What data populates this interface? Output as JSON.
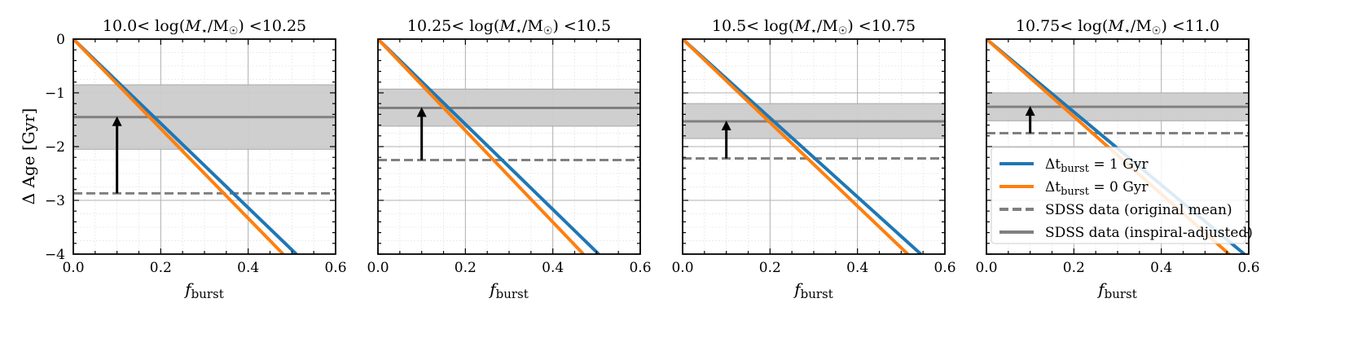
{
  "figure": {
    "ylabel": "Δ Age [Gyr]",
    "xlabel": "f_burst",
    "xlabel_main": "f",
    "xlabel_sub": "burst"
  },
  "colors": {
    "blue": "#1f77b4",
    "orange": "#ff7f0e",
    "sdss_line": "#808080",
    "band": "#cccccc",
    "grid_major": "#b0b0b0",
    "grid_minor": "#e6e6e6",
    "arrow": "#000000"
  },
  "legend": {
    "entries": [
      {
        "label": "Δt_burst = 1 Gyr",
        "pre": "Δt",
        "sub": "burst",
        "post": " = 1 Gyr",
        "style": "blue"
      },
      {
        "label": "Δt_burst = 0 Gyr",
        "pre": "Δt",
        "sub": "burst",
        "post": " = 0 Gyr",
        "style": "orange"
      },
      {
        "label": "SDSS data (original mean)",
        "pre": "SDSS data (original mean)",
        "sub": "",
        "post": "",
        "style": "dashed"
      },
      {
        "label": "SDSS data (inspiral-adjusted)",
        "pre": "SDSS data (inspiral-adjusted)",
        "sub": "",
        "post": "",
        "style": "solid"
      }
    ]
  },
  "chart_data": [
    {
      "type": "line",
      "title": "10.0< log(M⋆/M☉) <10.25",
      "title_lo": "10.0",
      "title_hi": "10.25",
      "xlim": [
        0,
        0.6
      ],
      "ylim": [
        -4,
        0
      ],
      "xticks": [
        "0.0",
        "0.2",
        "0.4",
        "0.6"
      ],
      "yticks": [
        "0",
        "−1",
        "−2",
        "−3",
        "−4"
      ],
      "show_yticklabels": true,
      "series": [
        {
          "name": "Δt_burst = 1 Gyr",
          "x": [
            0,
            0.51
          ],
          "y": [
            0,
            -4.0
          ]
        },
        {
          "name": "Δt_burst = 0 Gyr",
          "x": [
            0,
            0.48
          ],
          "y": [
            0,
            -4.0
          ]
        }
      ],
      "sdss_original_mean": -2.87,
      "sdss_adjusted_mean": -1.45,
      "sdss_adjusted_band": [
        -2.05,
        -0.85
      ],
      "arrow": {
        "x": 0.1,
        "from": -2.87,
        "to": -1.45
      }
    },
    {
      "type": "line",
      "title": "10.25< log(M⋆/M☉) <10.5",
      "title_lo": "10.25",
      "title_hi": "10.5",
      "xlim": [
        0,
        0.6
      ],
      "ylim": [
        -4,
        0
      ],
      "xticks": [
        "0.0",
        "0.2",
        "0.4",
        "0.6"
      ],
      "yticks": [
        "0",
        "−1",
        "−2",
        "−3",
        "−4"
      ],
      "show_yticklabels": false,
      "series": [
        {
          "name": "Δt_burst = 1 Gyr",
          "x": [
            0,
            0.505
          ],
          "y": [
            0,
            -4.0
          ]
        },
        {
          "name": "Δt_burst = 0 Gyr",
          "x": [
            0,
            0.47
          ],
          "y": [
            0,
            -4.0
          ]
        }
      ],
      "sdss_original_mean": -2.25,
      "sdss_adjusted_mean": -1.28,
      "sdss_adjusted_band": [
        -1.62,
        -0.93
      ],
      "arrow": {
        "x": 0.1,
        "from": -2.25,
        "to": -1.28
      }
    },
    {
      "type": "line",
      "title": "10.5< log(M⋆/M☉) <10.75",
      "title_lo": "10.5",
      "title_hi": "10.75",
      "xlim": [
        0,
        0.6
      ],
      "ylim": [
        -4,
        0
      ],
      "xticks": [
        "0.0",
        "0.2",
        "0.4",
        "0.6"
      ],
      "yticks": [
        "0",
        "−1",
        "−2",
        "−3",
        "−4"
      ],
      "show_yticklabels": false,
      "series": [
        {
          "name": "Δt_burst = 1 Gyr",
          "x": [
            0,
            0.545
          ],
          "y": [
            0,
            -4.0
          ]
        },
        {
          "name": "Δt_burst = 0 Gyr",
          "x": [
            0,
            0.515
          ],
          "y": [
            0,
            -4.0
          ]
        }
      ],
      "sdss_original_mean": -2.22,
      "sdss_adjusted_mean": -1.53,
      "sdss_adjusted_band": [
        -1.85,
        -1.2
      ],
      "arrow": {
        "x": 0.1,
        "from": -2.22,
        "to": -1.53
      }
    },
    {
      "type": "line",
      "title": "10.75< log(M⋆/M☉) <11.0",
      "title_lo": "10.75",
      "title_hi": "11.0",
      "xlim": [
        0,
        0.6
      ],
      "ylim": [
        -4,
        0
      ],
      "xticks": [
        "0.0",
        "0.2",
        "0.4",
        "0.6"
      ],
      "yticks": [
        "0",
        "−1",
        "−2",
        "−3",
        "−4"
      ],
      "show_yticklabels": false,
      "series": [
        {
          "name": "Δt_burst = 1 Gyr",
          "x": [
            0,
            0.59
          ],
          "y": [
            0,
            -4.0
          ]
        },
        {
          "name": "Δt_burst = 0 Gyr",
          "x": [
            0,
            0.555
          ],
          "y": [
            0,
            -4.0
          ]
        }
      ],
      "sdss_original_mean": -1.75,
      "sdss_adjusted_mean": -1.26,
      "sdss_adjusted_band": [
        -1.52,
        -1.0
      ],
      "arrow": {
        "x": 0.1,
        "from": -1.75,
        "to": -1.26
      }
    }
  ]
}
